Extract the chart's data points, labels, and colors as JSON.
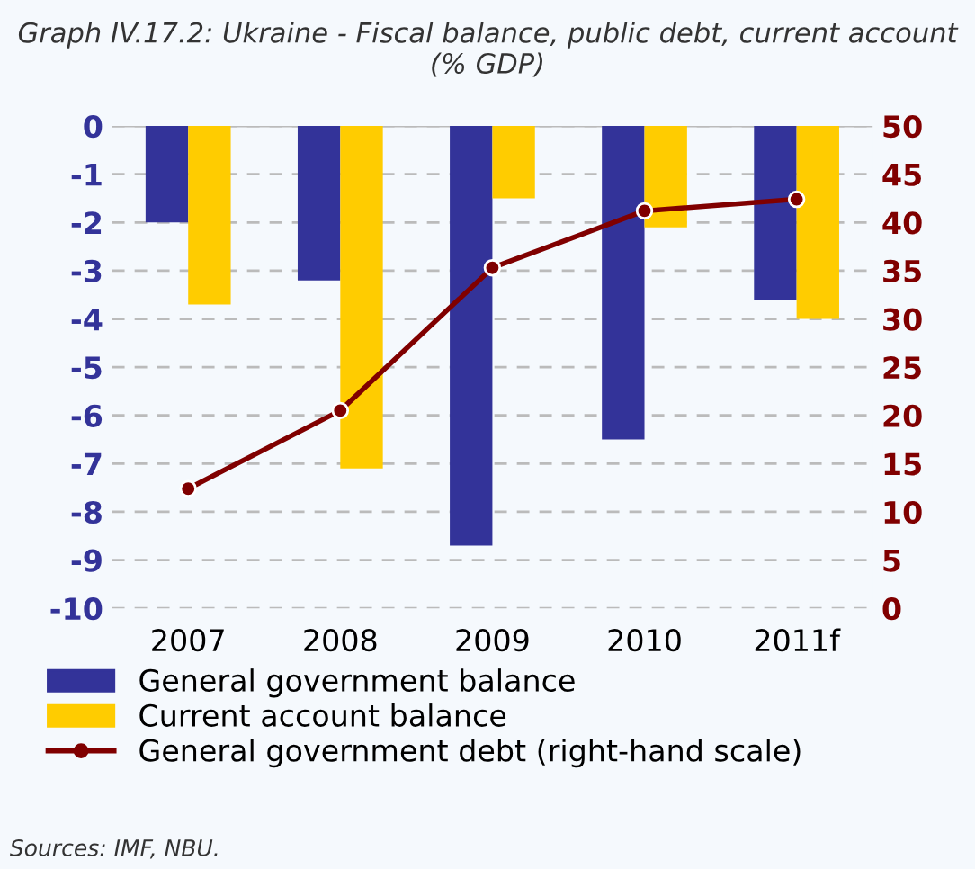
{
  "chart_data": {
    "type": "bar",
    "title": "Graph IV.17.2: Ukraine - Fiscal balance, public debt, current account (% GDP)",
    "categories": [
      "2007",
      "2008",
      "2009",
      "2010",
      "2011f"
    ],
    "series": [
      {
        "name": "General government balance",
        "color": "#333399",
        "values": [
          -2.0,
          -3.2,
          -8.7,
          -6.5,
          -3.6
        ]
      },
      {
        "name": "Current account balance",
        "color": "#ffcc00",
        "values": [
          -3.7,
          -7.1,
          -1.5,
          -2.1,
          -4.0
        ]
      },
      {
        "name": "General government debt (right-hand scale)",
        "color": "#800000",
        "type": "line",
        "axis": "y2",
        "marker": "circle",
        "values": [
          12.4,
          20.5,
          35.3,
          41.2,
          42.4
        ]
      }
    ],
    "ylim": [
      -10,
      0
    ],
    "yticks": [
      -10,
      -9,
      -8,
      -7,
      -6,
      -5,
      -4,
      -3,
      -2,
      -1,
      0
    ],
    "y2lim": [
      0,
      50
    ],
    "y2ticks": [
      0,
      5,
      10,
      15,
      20,
      25,
      30,
      35,
      40,
      45,
      50
    ],
    "grid": "y",
    "legend": "bottom",
    "annotations": [
      "Sources: IMF, NBU."
    ]
  }
}
